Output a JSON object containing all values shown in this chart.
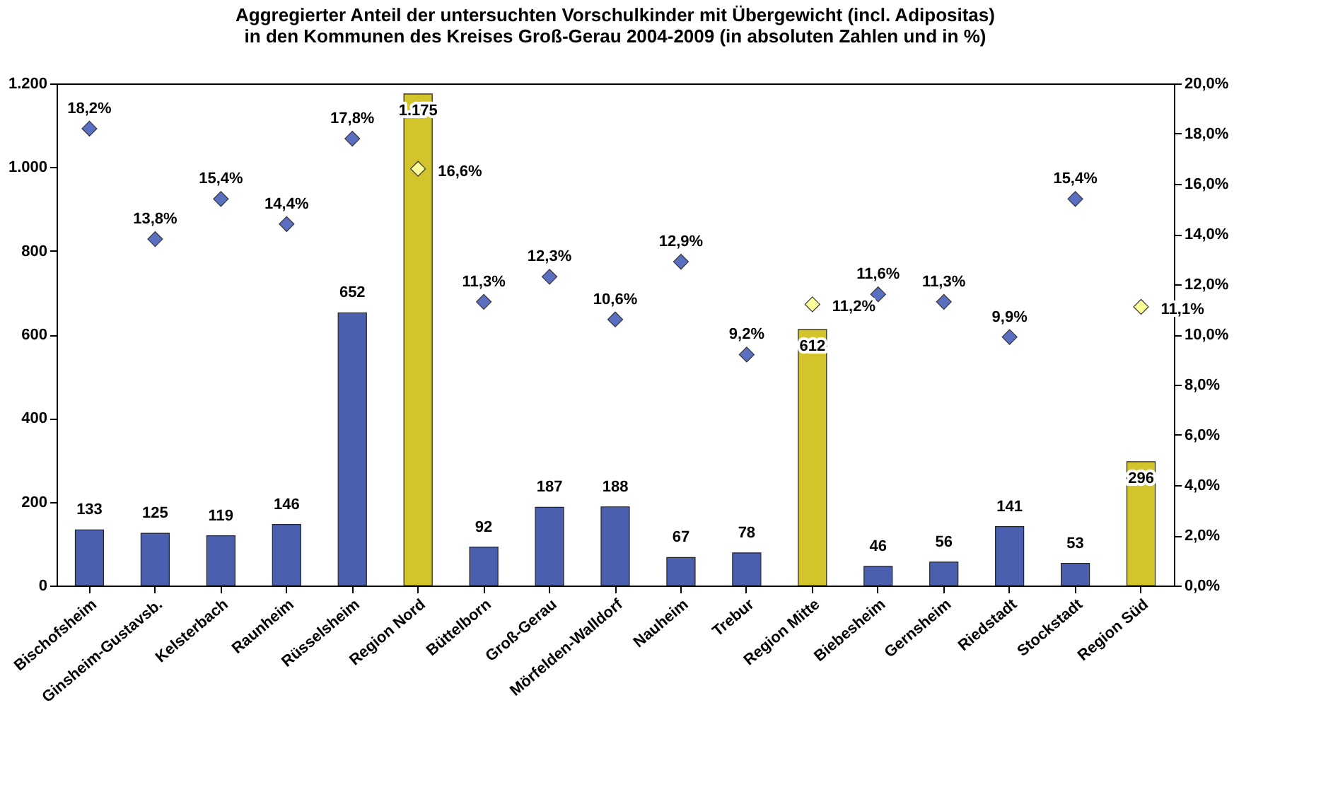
{
  "chart_data": {
    "type": "bar",
    "title": "Aggregierter Anteil der untersuchten Vorschulkinder mit Übergewicht (incl. Adipositas)\nin den Kommunen des Kreises Groß-Gerau 2004-2009 (in absoluten Zahlen und in %)",
    "categories": [
      "Bischofsheim",
      "Ginsheim-Gustavsb.",
      "Kelsterbach",
      "Raunheim",
      "Rüsselsheim",
      "Region Nord",
      "Büttelborn",
      "Groß-Gerau",
      "Mörfelden-Walldorf",
      "Nauheim",
      "Trebur",
      "Region Mitte",
      "Biebesheim",
      "Gernsheim",
      "Riedstadt",
      "Stockstadt",
      "Region Süd"
    ],
    "series": [
      {
        "type": "bar",
        "values": [
          133,
          125,
          119,
          146,
          652,
          1175,
          92,
          187,
          188,
          67,
          78,
          612,
          46,
          56,
          141,
          53,
          296
        ],
        "colors": [
          "#4a5fae",
          "#4a5fae",
          "#4a5fae",
          "#4a5fae",
          "#4a5fae",
          "#d2c42a",
          "#4a5fae",
          "#4a5fae",
          "#4a5fae",
          "#4a5fae",
          "#4a5fae",
          "#d2c42a",
          "#4a5fae",
          "#4a5fae",
          "#4a5fae",
          "#4a5fae",
          "#d2c42a"
        ],
        "value_labels": [
          "133",
          "125",
          "119",
          "146",
          "652",
          "1.175",
          "92",
          "187",
          "188",
          "67",
          "78",
          "612",
          "46",
          "56",
          "141",
          "53",
          "296"
        ]
      },
      {
        "type": "scatter",
        "axis": "y2",
        "marker": "diamond",
        "values": [
          18.2,
          13.8,
          15.4,
          14.4,
          17.8,
          16.6,
          11.3,
          12.3,
          10.6,
          12.9,
          9.2,
          11.2,
          11.6,
          11.3,
          9.9,
          15.4,
          11.1
        ],
        "colors": [
          "#5b6fc0",
          "#5b6fc0",
          "#5b6fc0",
          "#5b6fc0",
          "#5b6fc0",
          "#ffff99",
          "#5b6fc0",
          "#5b6fc0",
          "#5b6fc0",
          "#5b6fc0",
          "#5b6fc0",
          "#ffff99",
          "#5b6fc0",
          "#5b6fc0",
          "#5b6fc0",
          "#5b6fc0",
          "#ffff99"
        ],
        "value_labels": [
          "18,2%",
          "13,8%",
          "15,4%",
          "14,4%",
          "17,8%",
          "16,6%",
          "11,3%",
          "12,3%",
          "10,6%",
          "12,9%",
          "9,2%",
          "11,2%",
          "11,6%",
          "11,3%",
          "9,9%",
          "15,4%",
          "11,1%"
        ]
      }
    ],
    "ylim": [
      0,
      1200
    ],
    "yticks": [
      0,
      200,
      400,
      600,
      800,
      {
        "value": 1000,
        "label": "1.000"
      },
      {
        "value": 1200,
        "label": "1.200"
      }
    ],
    "y2lim": [
      0,
      20
    ],
    "y2ticks": [
      {
        "value": 0,
        "label": "0,0%"
      },
      {
        "value": 2,
        "label": "2,0%"
      },
      {
        "value": 4,
        "label": "4,0%"
      },
      {
        "value": 6,
        "label": "6,0%"
      },
      {
        "value": 8,
        "label": "8,0%"
      },
      {
        "value": 10,
        "label": "10,0%"
      },
      {
        "value": 12,
        "label": "12,0%"
      },
      {
        "value": 14,
        "label": "14,0%"
      },
      {
        "value": 16,
        "label": "16,0%"
      },
      {
        "value": 18,
        "label": "18,0%"
      },
      {
        "value": 20,
        "label": "20,0%"
      }
    ],
    "grid": false
  }
}
